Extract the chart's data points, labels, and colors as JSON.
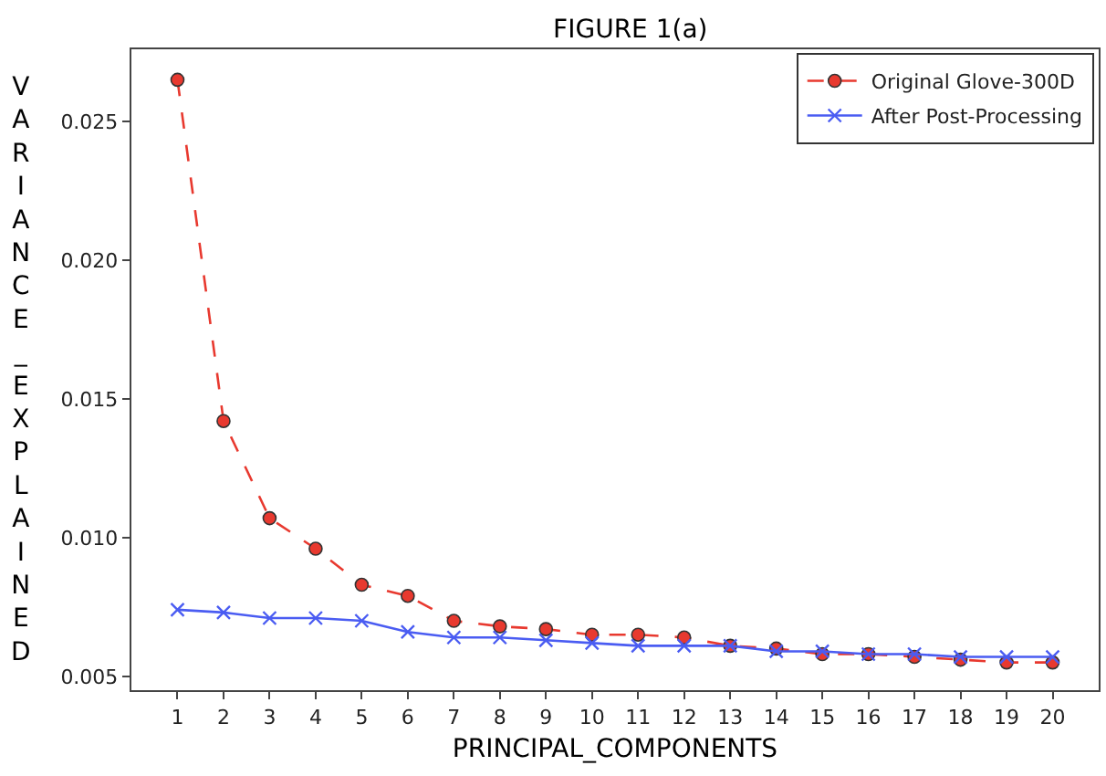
{
  "chart_data": {
    "type": "line",
    "title": "FIGURE 1(a)",
    "xlabel": "PRINCIPAL_COMPONENTS",
    "ylabel": "VARIANCE_EXPLAINED",
    "x": [
      1,
      2,
      3,
      4,
      5,
      6,
      7,
      8,
      9,
      10,
      11,
      12,
      13,
      14,
      15,
      16,
      17,
      18,
      19,
      20
    ],
    "series": [
      {
        "name": "Original Glove-300D",
        "color": "#e8392f",
        "marker": "circle",
        "line_style": "dashed",
        "values": [
          0.0265,
          0.0142,
          0.0107,
          0.0096,
          0.0083,
          0.0079,
          0.007,
          0.0068,
          0.0067,
          0.0065,
          0.0065,
          0.0064,
          0.0061,
          0.006,
          0.0058,
          0.0058,
          0.0057,
          0.0056,
          0.0055,
          0.0055
        ]
      },
      {
        "name": "After Post-Processing",
        "color": "#4a5cf2",
        "marker": "cross",
        "line_style": "solid",
        "values": [
          0.0074,
          0.0073,
          0.0071,
          0.0071,
          0.007,
          0.0066,
          0.0064,
          0.0064,
          0.0063,
          0.0062,
          0.0061,
          0.0061,
          0.0061,
          0.0059,
          0.0059,
          0.0058,
          0.0058,
          0.0057,
          0.0057,
          0.0057
        ]
      }
    ],
    "xlim": [
      0,
      21
    ],
    "xticks": [
      1,
      2,
      3,
      4,
      5,
      6,
      7,
      8,
      9,
      10,
      11,
      12,
      13,
      14,
      15,
      16,
      17,
      18,
      19,
      20
    ],
    "ylim": [
      0.0045,
      0.0276
    ],
    "yticks": [
      {
        "value": 0.005,
        "label": "0.005"
      },
      {
        "value": 0.01,
        "label": "0.010"
      },
      {
        "value": 0.015,
        "label": "0.015"
      },
      {
        "value": 0.02,
        "label": "0.020"
      },
      {
        "value": 0.025,
        "label": "0.025"
      }
    ],
    "legend": "top right"
  }
}
